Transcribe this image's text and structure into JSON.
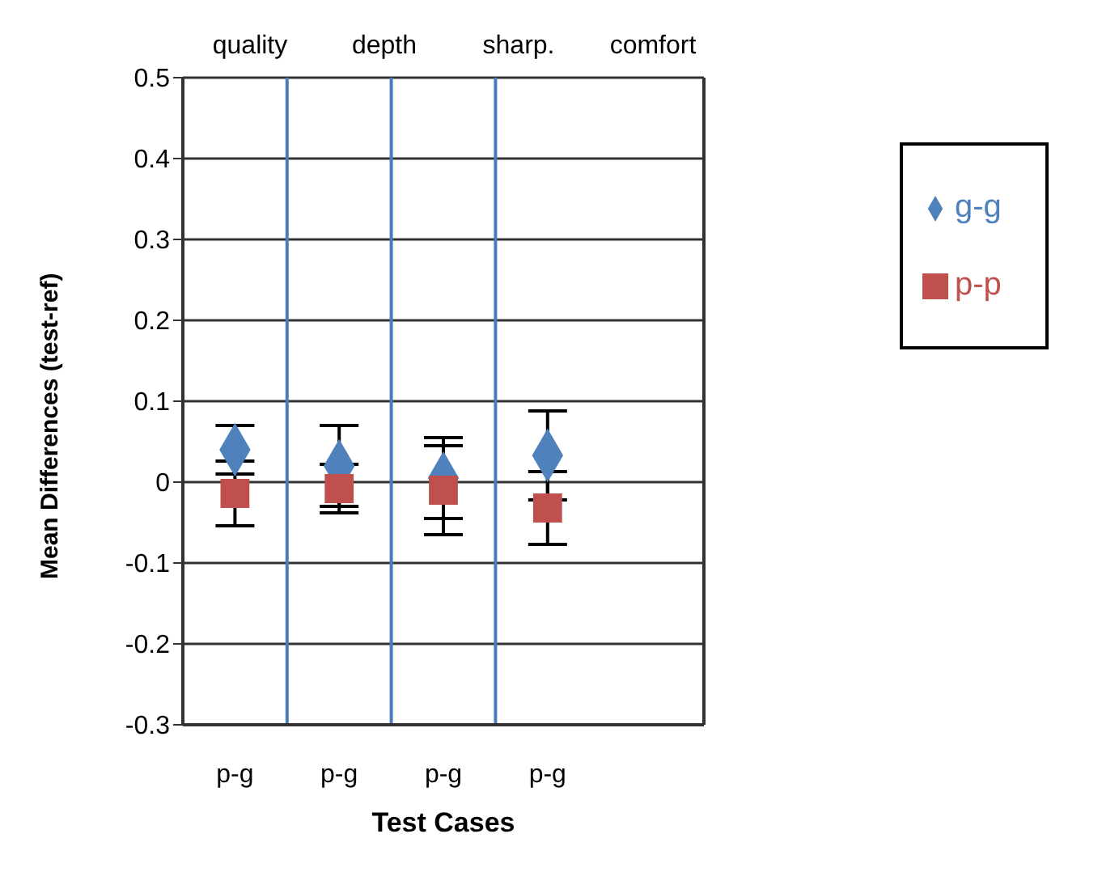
{
  "chart_data": {
    "type": "scatter",
    "xlabel": "Test Cases",
    "ylabel": "Mean Differences (test-ref)",
    "categories": [
      "p-g",
      "p-g",
      "p-g",
      "p-g",
      null
    ],
    "ylim": [
      -0.3,
      0.5
    ],
    "yticks": [
      -0.3,
      -0.2,
      -0.1,
      0,
      0.1,
      0.2,
      0.3,
      0.4,
      0.5
    ],
    "series": [
      {
        "name": "g-g",
        "color": "#4f81bd",
        "marker": "diamond",
        "values": [
          0.04,
          0.02,
          0.005,
          0.033,
          null
        ],
        "errors": [
          0.03,
          0.05,
          0.05,
          0.055,
          null
        ]
      },
      {
        "name": "p-p",
        "color": "#c0504d",
        "marker": "square",
        "values": [
          -0.014,
          -0.008,
          -0.01,
          -0.032,
          null
        ],
        "errors": [
          0.04,
          0.03,
          0.055,
          0.045,
          null
        ]
      }
    ],
    "annotations": [
      "quality",
      "depth",
      "sharp.",
      "comfort"
    ],
    "grid": "y",
    "legend": "right"
  }
}
